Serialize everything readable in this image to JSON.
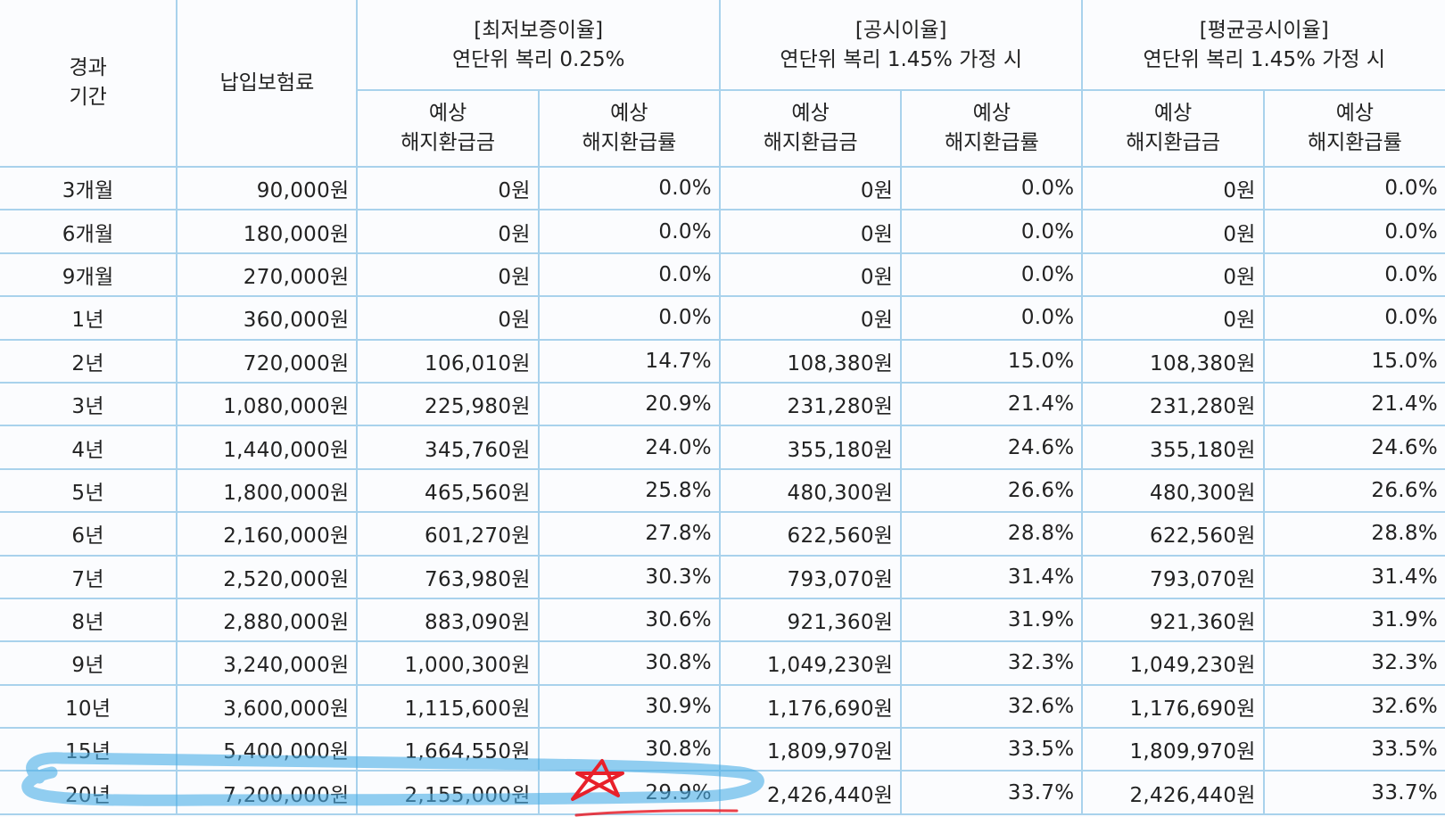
{
  "header": {
    "period": [
      "경과",
      "기간"
    ],
    "premium": "납입보험료",
    "groups": [
      {
        "title": "[최저보증이율]",
        "subtitle": "연단위 복리 0.25%"
      },
      {
        "title": "[공시이율]",
        "subtitle": "연단위 복리 1.45% 가정 시"
      },
      {
        "title": "[평균공시이율]",
        "subtitle": "연단위 복리 1.45% 가정 시"
      }
    ],
    "refund_amount": [
      "예상",
      "해지환급금"
    ],
    "refund_rate": [
      "예상",
      "해지환급률"
    ]
  },
  "rows": [
    [
      "3개월",
      "90,000원",
      "0원",
      "0.0%",
      "0원",
      "0.0%",
      "0원",
      "0.0%"
    ],
    [
      "6개월",
      "180,000원",
      "0원",
      "0.0%",
      "0원",
      "0.0%",
      "0원",
      "0.0%"
    ],
    [
      "9개월",
      "270,000원",
      "0원",
      "0.0%",
      "0원",
      "0.0%",
      "0원",
      "0.0%"
    ],
    [
      "1년",
      "360,000원",
      "0원",
      "0.0%",
      "0원",
      "0.0%",
      "0원",
      "0.0%"
    ],
    [
      "2년",
      "720,000원",
      "106,010원",
      "14.7%",
      "108,380원",
      "15.0%",
      "108,380원",
      "15.0%"
    ],
    [
      "3년",
      "1,080,000원",
      "225,980원",
      "20.9%",
      "231,280원",
      "21.4%",
      "231,280원",
      "21.4%"
    ],
    [
      "4년",
      "1,440,000원",
      "345,760원",
      "24.0%",
      "355,180원",
      "24.6%",
      "355,180원",
      "24.6%"
    ],
    [
      "5년",
      "1,800,000원",
      "465,560원",
      "25.8%",
      "480,300원",
      "26.6%",
      "480,300원",
      "26.6%"
    ],
    [
      "6년",
      "2,160,000원",
      "601,270원",
      "27.8%",
      "622,560원",
      "28.8%",
      "622,560원",
      "28.8%"
    ],
    [
      "7년",
      "2,520,000원",
      "763,980원",
      "30.3%",
      "793,070원",
      "31.4%",
      "793,070원",
      "31.4%"
    ],
    [
      "8년",
      "2,880,000원",
      "883,090원",
      "30.6%",
      "921,360원",
      "31.9%",
      "921,360원",
      "31.9%"
    ],
    [
      "9년",
      "3,240,000원",
      "1,000,300원",
      "30.8%",
      "1,049,230원",
      "32.3%",
      "1,049,230원",
      "32.3%"
    ],
    [
      "10년",
      "3,600,000원",
      "1,115,600원",
      "30.9%",
      "1,176,690원",
      "32.6%",
      "1,176,690원",
      "32.6%"
    ],
    [
      "15년",
      "5,400,000원",
      "1,664,550원",
      "30.8%",
      "1,809,970원",
      "33.5%",
      "1,809,970원",
      "33.5%"
    ],
    [
      "20년",
      "7,200,000원",
      "2,155,000원",
      "29.9%",
      "2,426,440원",
      "33.7%",
      "2,426,440원",
      "33.7%"
    ]
  ],
  "annotations": {
    "highlight_color": "#4aaee6",
    "star_color": "#e8202a",
    "highlighted_row": "20년"
  }
}
